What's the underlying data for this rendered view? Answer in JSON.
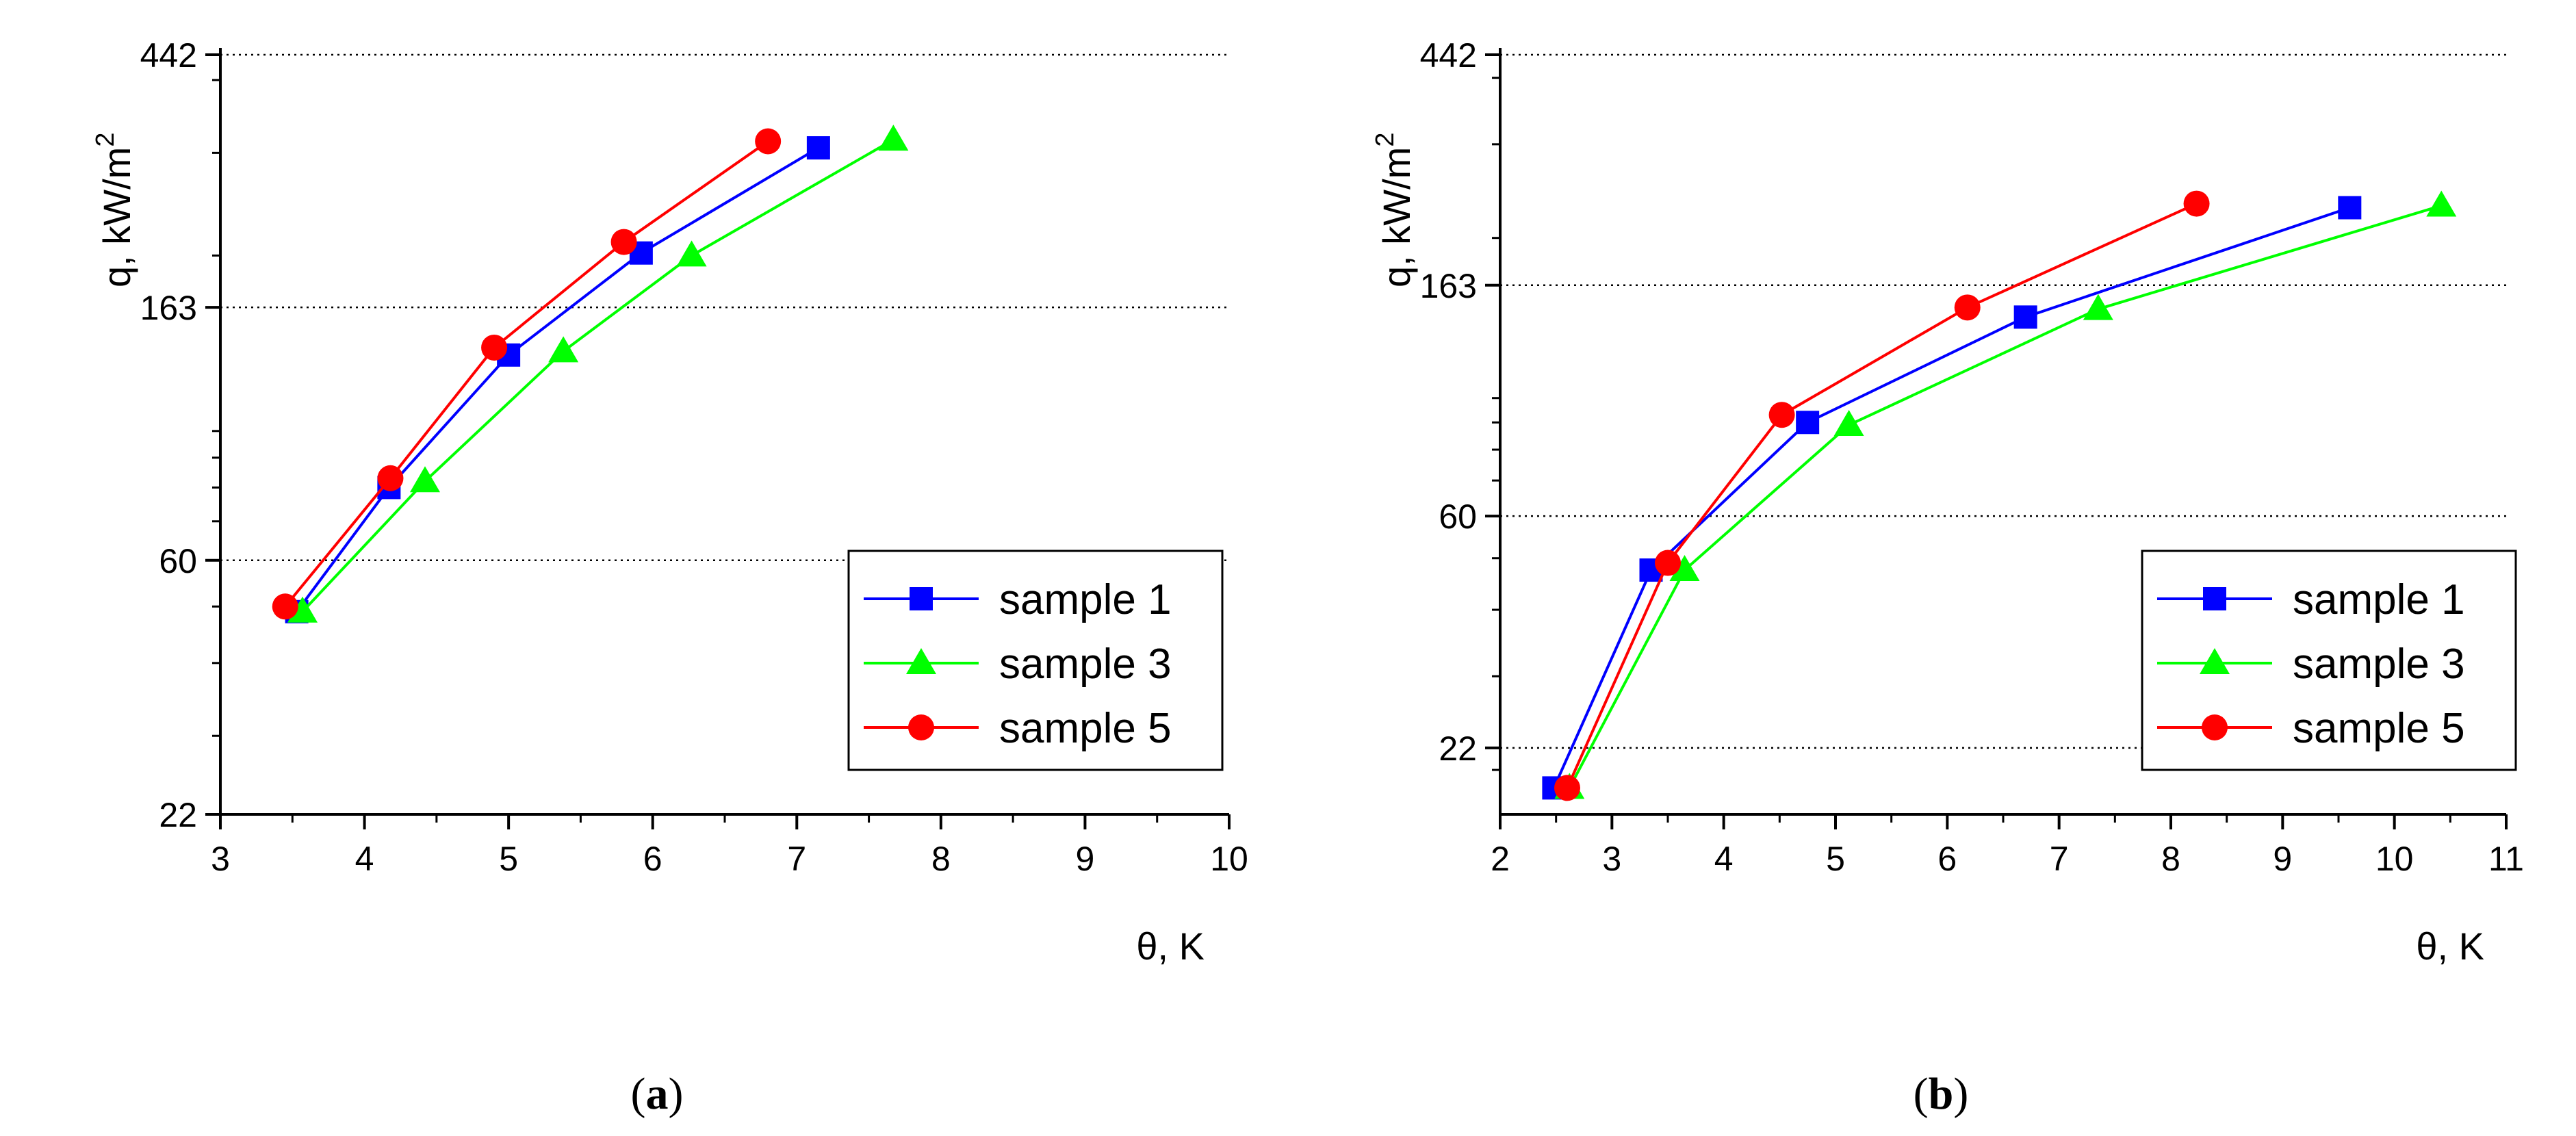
{
  "chart_data": [
    {
      "type": "line",
      "panel_label": "(a)",
      "panel_letter": "a",
      "xlabel": "θ, K",
      "ylabel": "q, kW/m",
      "ylabel_sup": "2",
      "xlim": [
        3,
        10
      ],
      "xticks": [
        "3",
        "4",
        "5",
        "6",
        "7",
        "8",
        "9",
        "10"
      ],
      "y_scale": "log",
      "ylim": [
        22,
        442
      ],
      "yticks": [
        "22",
        "60",
        "163",
        "442"
      ],
      "grid": "horizontal dotted at major y ticks",
      "legend_position": "bottom-right",
      "series": [
        {
          "name": "sample 1",
          "color": "#0000ff",
          "marker": "square",
          "x": [
            3.53,
            4.17,
            5.0,
            5.92,
            7.15
          ],
          "y": [
            49,
            80,
            135,
            202,
            306
          ]
        },
        {
          "name": "sample 3",
          "color": "#00ff00",
          "marker": "triangle",
          "x": [
            3.57,
            4.42,
            5.38,
            6.27,
            7.67
          ],
          "y": [
            49,
            82,
            137,
            200,
            316
          ]
        },
        {
          "name": "sample 5",
          "color": "#ff0000",
          "marker": "circle",
          "x": [
            3.45,
            4.18,
            4.9,
            5.8,
            6.8
          ],
          "y": [
            50,
            83,
            139,
            211,
            314
          ]
        }
      ]
    },
    {
      "type": "line",
      "panel_label": "(b)",
      "panel_letter": "b",
      "xlabel": "θ, K",
      "ylabel": "q, kW/m",
      "ylabel_sup": "2",
      "xlim": [
        2,
        11
      ],
      "xticks": [
        "2",
        "3",
        "4",
        "5",
        "6",
        "7",
        "8",
        "9",
        "10",
        "11"
      ],
      "y_scale": "log",
      "ylim": [
        16.5,
        442
      ],
      "yticks": [
        "22",
        "60",
        "163",
        "442"
      ],
      "grid": "horizontal dotted at major y ticks",
      "legend_position": "bottom-right",
      "series": [
        {
          "name": "sample 1",
          "color": "#0000ff",
          "marker": "square",
          "x": [
            2.48,
            3.35,
            4.75,
            6.7,
            9.6
          ],
          "y": [
            18.5,
            47.5,
            90,
            142,
            228
          ]
        },
        {
          "name": "sample 3",
          "color": "#00ff00",
          "marker": "triangle",
          "x": [
            2.62,
            3.65,
            5.12,
            7.35,
            10.42
          ],
          "y": [
            18.5,
            47.5,
            89,
            147,
            230
          ]
        },
        {
          "name": "sample 5",
          "color": "#ff0000",
          "marker": "circle",
          "x": [
            2.6,
            3.5,
            4.52,
            6.18,
            8.23
          ],
          "y": [
            18.5,
            49,
            93,
            148,
            232
          ]
        }
      ]
    }
  ]
}
